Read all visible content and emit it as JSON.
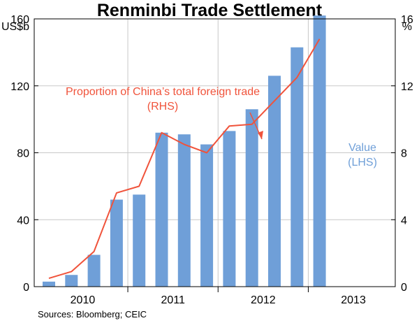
{
  "chart_data": {
    "type": "bar",
    "title": "Renminbi Trade Settlement",
    "left_unit": "US$b",
    "right_unit": "%",
    "left_axis": {
      "min": 0,
      "max": 160,
      "ticks": [
        "0",
        "40",
        "80",
        "120",
        "160"
      ]
    },
    "right_axis": {
      "min": 0,
      "max": 16,
      "ticks": [
        "0",
        "4",
        "8",
        "12",
        "16"
      ]
    },
    "x_tick_labels": [
      "2010",
      "2011",
      "2012",
      "2013"
    ],
    "grid": true,
    "series": [
      {
        "name": "Value",
        "axis": "left",
        "type": "bar",
        "color": "#6f9fd8",
        "periods": [
          "2010 Q1",
          "2010 Q2",
          "2010 Q3",
          "2010 Q4",
          "2011 Q1",
          "2011 Q2",
          "2011 Q3",
          "2011 Q4",
          "2012 Q1",
          "2012 Q2",
          "2012 Q3",
          "2012 Q4",
          "2013 Q1"
        ],
        "values": [
          3,
          7,
          19,
          52,
          55,
          92,
          91,
          85,
          93,
          106,
          126,
          143,
          162
        ]
      },
      {
        "name": "Proportion of China's total foreign trade",
        "axis": "right",
        "type": "line",
        "color": "#f0533b",
        "periods": [
          "2010 Q1",
          "2010 Q2",
          "2010 Q3",
          "2010 Q4",
          "2011 Q1",
          "2011 Q2",
          "2011 Q3",
          "2011 Q4",
          "2012 Q1",
          "2012 Q2",
          "2012 Q3",
          "2012 Q4",
          "2013 Q1"
        ],
        "values": [
          0.5,
          0.9,
          2.1,
          5.6,
          6.0,
          9.2,
          8.5,
          8.0,
          9.6,
          9.7,
          11.1,
          12.5,
          14.8
        ]
      }
    ],
    "annotations": {
      "line_label_1": "Proportion of China’s total foreign trade",
      "line_label_2": "(RHS)",
      "bar_label_1": "Value",
      "bar_label_2": "(LHS)"
    },
    "source": "Sources: Bloomberg; CEIC"
  }
}
